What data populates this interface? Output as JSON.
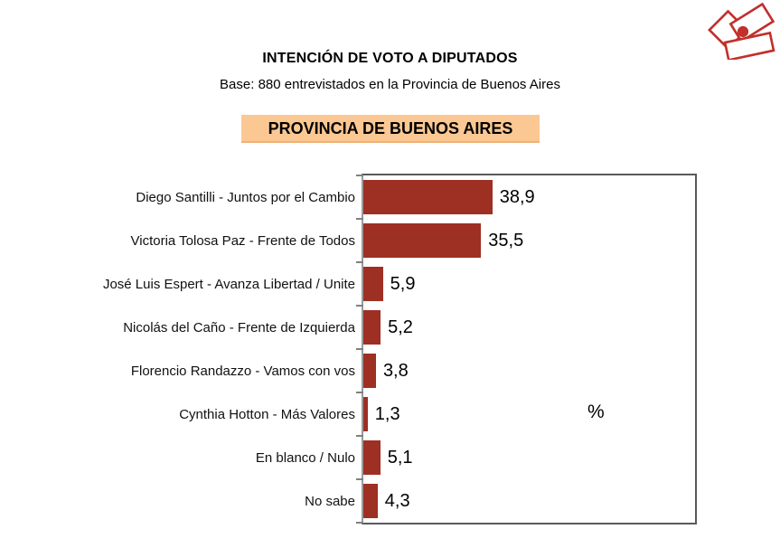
{
  "header": {
    "title": "INTENCIÓN DE VOTO A DIPUTADOS",
    "subtitle": "Base: 880 entrevistados en la Provincia de Buenos Aires",
    "region_banner": "PROVINCIA DE BUENOS AIRES",
    "banner_color": "#FBC893"
  },
  "logo": {
    "description": "overlapping red rectangle outlines with solid center dot",
    "color": "#c1302b"
  },
  "chart_data": {
    "type": "bar",
    "orientation": "horizontal",
    "title": "INTENCIÓN DE VOTO A DIPUTADOS",
    "subtitle": "Base: 880 entrevistados en la Provincia de Buenos Aires",
    "region": "PROVINCIA DE BUENOS AIRES",
    "categories": [
      "Diego Santilli - Juntos por el Cambio",
      "Victoria Tolosa Paz - Frente de Todos",
      "José Luis Espert - Avanza Libertad / Unite",
      "Nicolás del Caño - Frente de Izquierda",
      "Florencio Randazzo - Vamos con vos",
      "Cynthia Hotton - Más Valores",
      "En blanco / Nulo",
      "No sabe"
    ],
    "values": [
      38.9,
      35.5,
      5.9,
      5.2,
      3.8,
      1.3,
      5.1,
      4.3
    ],
    "value_labels": [
      "38,9",
      "35,5",
      "5,9",
      "5,2",
      "3,8",
      "1,3",
      "5,1",
      "4,3"
    ],
    "unit_label": "%",
    "xlim": [
      0,
      100
    ],
    "bar_color": "#9e2f23",
    "frame_color": "#595959",
    "grid": false,
    "legend": false
  }
}
